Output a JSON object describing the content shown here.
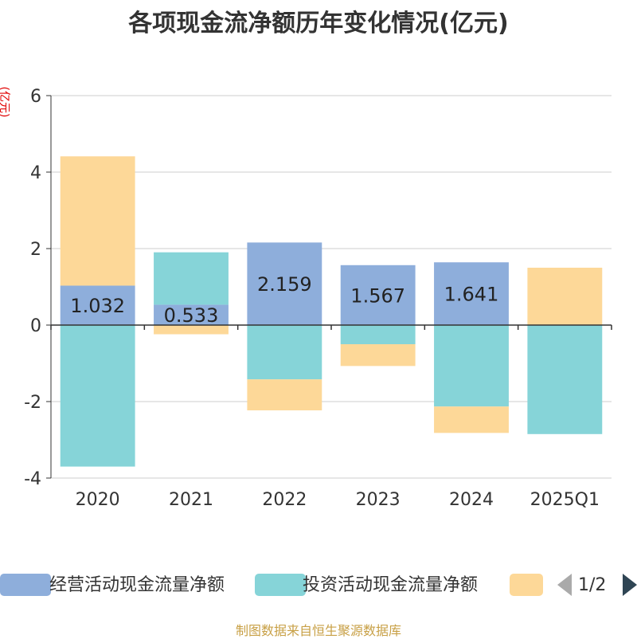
{
  "title": "各项现金流净额历年变化情况(亿元)",
  "y_unit": "(亿元)",
  "source": "制图数据来自恒生聚源数据库",
  "legend": {
    "items": [
      {
        "label": "经营活动现金流量净额",
        "color": "#8eaedb"
      },
      {
        "label": "投资活动现金流量净额",
        "color": "#86d4d8"
      },
      {
        "label": "",
        "color": "#fdd898"
      }
    ],
    "page": "1/2"
  },
  "chart_data": {
    "type": "bar",
    "stacked": true,
    "categories": [
      "2020",
      "2021",
      "2022",
      "2023",
      "2024",
      "2025Q1"
    ],
    "ylim": [
      -4,
      6
    ],
    "yticks": [
      -4,
      -2,
      0,
      2,
      4,
      6
    ],
    "grid": true,
    "legend_position": "bottom",
    "series": [
      {
        "name": "经营活动现金流量净额",
        "color": "#8eaedb",
        "values": [
          1.032,
          0.533,
          2.159,
          1.567,
          1.641,
          0.0
        ],
        "labels": [
          "1.032",
          "0.533",
          "2.159",
          "1.567",
          "1.641",
          ""
        ]
      },
      {
        "name": "投资活动现金流量净额",
        "color": "#86d4d8",
        "values": [
          -3.7,
          1.37,
          -1.42,
          -0.5,
          -2.13,
          -2.85
        ]
      },
      {
        "color": "#fdd898",
        "values": [
          3.38,
          -0.24,
          -0.81,
          -0.57,
          -0.69,
          1.5
        ]
      }
    ]
  }
}
